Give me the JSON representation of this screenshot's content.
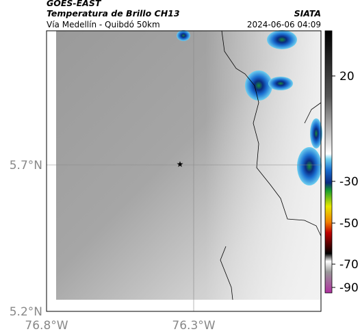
{
  "header": {
    "satellite": "GOES-EAST",
    "product": "Temperatura de Brillo CH13",
    "source": "SIATA",
    "route": "Vía Medellín - Quibdó 50km",
    "datetime": "2024-06-06 04:09"
  },
  "map": {
    "lat_labels": [
      "5.7°N",
      "5.2°N"
    ],
    "lon_labels": [
      "76.8°W",
      "76.3°W"
    ]
  },
  "colorbar": {
    "tick_labels": [
      "20",
      "-30",
      "-50",
      "-70",
      "-90"
    ]
  }
}
